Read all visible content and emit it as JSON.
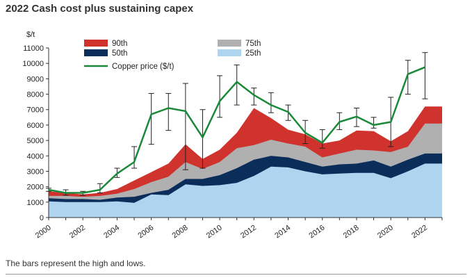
{
  "title": "2022 Cash cost plus sustaining capex",
  "footnote": "The bars represent the high and lows.",
  "chart_data": {
    "type": "area",
    "unit_label": "$/t",
    "x": [
      2000,
      2001,
      2002,
      2003,
      2004,
      2005,
      2006,
      2007,
      2008,
      2009,
      2010,
      2011,
      2012,
      2013,
      2014,
      2015,
      2016,
      2017,
      2018,
      2019,
      2020,
      2021,
      2022,
      2023
    ],
    "x_ticks": [
      2000,
      2002,
      2004,
      2006,
      2008,
      2010,
      2012,
      2014,
      2016,
      2018,
      2020,
      2022
    ],
    "ylim": [
      0,
      11000
    ],
    "y_ticks": [
      0,
      1000,
      2000,
      3000,
      4000,
      5000,
      6000,
      7000,
      8000,
      9000,
      10000,
      11000
    ],
    "grid": false,
    "legend_position": "top",
    "series": [
      {
        "name": "25th",
        "color": "#aed4f0",
        "values": [
          1050,
          1000,
          1000,
          1000,
          1050,
          950,
          1500,
          1450,
          2150,
          2050,
          2100,
          2250,
          2700,
          3300,
          3250,
          3000,
          2800,
          2850,
          2900,
          2900,
          2550,
          3000,
          3500,
          3500
        ]
      },
      {
        "name": "50th",
        "color": "#0a2d5a",
        "values": [
          1250,
          1200,
          1200,
          1150,
          1300,
          1350,
          1600,
          1800,
          2500,
          2500,
          2750,
          3200,
          3750,
          4000,
          3900,
          3600,
          3300,
          3450,
          3500,
          3700,
          3300,
          3750,
          4150,
          4150
        ]
      },
      {
        "name": "75th",
        "color": "#b0b0b0",
        "values": [
          1400,
          1400,
          1350,
          1400,
          1550,
          1850,
          2300,
          2650,
          3600,
          3150,
          3600,
          4500,
          4700,
          5050,
          4800,
          4600,
          3900,
          4150,
          4400,
          4350,
          4250,
          4600,
          6100,
          6100
        ]
      },
      {
        "name": "90th",
        "color": "#d0322d",
        "values": [
          1700,
          1600,
          1500,
          1600,
          1850,
          2400,
          2950,
          3500,
          4750,
          3800,
          4400,
          5500,
          7100,
          6450,
          5700,
          5400,
          4800,
          5000,
          5650,
          5600,
          4950,
          5600,
          7200,
          7200
        ]
      }
    ],
    "copper": {
      "name": "Copper price ($/t)",
      "color": "#1a8a3a",
      "x": [
        2000,
        2001,
        2002,
        2003,
        2004,
        2005,
        2006,
        2007,
        2008,
        2009,
        2010,
        2011,
        2012,
        2013,
        2014,
        2015,
        2016,
        2017,
        2018,
        2019,
        2020,
        2021,
        2022
      ],
      "values": [
        1800,
        1600,
        1600,
        1800,
        2850,
        3600,
        6700,
        7100,
        6900,
        5200,
        7550,
        8800,
        7950,
        7300,
        6850,
        5500,
        4850,
        6200,
        6550,
        6000,
        6200,
        9300,
        9750
      ],
      "high": [
        1900,
        1800,
        1700,
        2200,
        3200,
        4600,
        8050,
        8050,
        8700,
        7000,
        9200,
        9900,
        8400,
        8100,
        7300,
        6300,
        5700,
        6800,
        7100,
        6500,
        7800,
        10200,
        10700
      ],
      "low": [
        1700,
        1450,
        1450,
        1600,
        2600,
        3200,
        4750,
        5650,
        3100,
        3200,
        6500,
        7300,
        7300,
        6800,
        6300,
        4800,
        4500,
        5700,
        5900,
        5800,
        4600,
        8000,
        7700
      ]
    }
  }
}
